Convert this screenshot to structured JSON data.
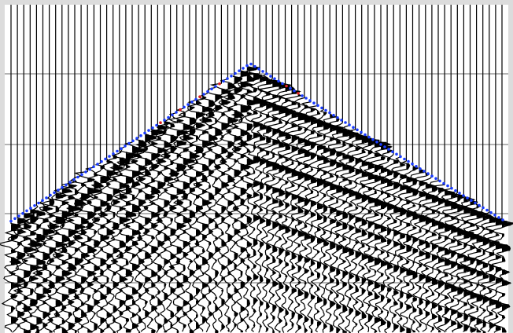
{
  "image": {
    "kind": "seismic shot gather (wiggle trace display)",
    "colors": {
      "frame": "#dcdcdc",
      "background": "#ffffff",
      "trace": "#000000",
      "gridline": "#b4b4b4",
      "first_break_pick_primary": "#1a3cff",
      "first_break_pick_secondary": "#e02020"
    }
  }
}
